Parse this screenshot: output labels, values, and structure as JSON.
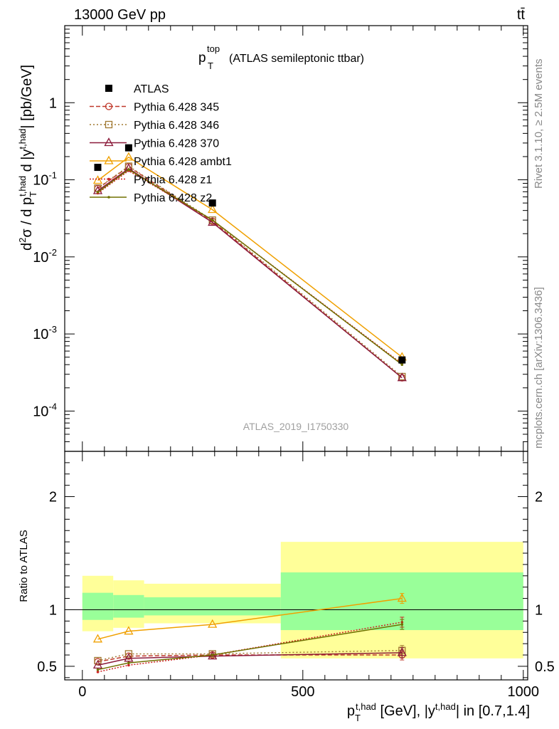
{
  "header": {
    "energy_label": "13000 GeV pp",
    "process_label": "tt̄"
  },
  "side_labels": {
    "rivet": "Rivet 3.1.10, ≥ 2.5M events",
    "mcplots": "mcplots.cern.ch [arXiv:1306.3436]"
  },
  "chart_data": [
    {
      "type": "line",
      "panel": "main",
      "title": "(ATLAS semileptonic ttbar)",
      "title_symbol": "p",
      "title_sup": "top",
      "title_sub": "T",
      "watermark": "ATLAS_2019_I1750330",
      "ylabel": "d²σ / d p_T^{t,had} d |y^{t,had}| [pb/GeV]",
      "yscale": "log",
      "ylim": [
        3e-05,
        10
      ],
      "xlim": [
        -40,
        1010
      ],
      "ytick_labels": [
        {
          "base": "10",
          "exp": "-4",
          "value": 0.0001
        },
        {
          "base": "10",
          "exp": "-3",
          "value": 0.001
        },
        {
          "base": "10",
          "exp": "-2",
          "value": 0.01
        },
        {
          "base": "10",
          "exp": "-1",
          "value": 0.1
        },
        {
          "base": "1",
          "exp": "",
          "value": 1
        }
      ],
      "data": {
        "name": "ATLAS",
        "x": [
          35,
          105,
          295,
          725
        ],
        "y": [
          0.145,
          0.26,
          0.05,
          0.00046
        ]
      },
      "series": [
        {
          "name": "Pythia 6.428 345",
          "color": "#c0392b",
          "dash": "6,3",
          "marker": "circle-open",
          "x": [
            35,
            105,
            295,
            725
          ],
          "y": [
            0.077,
            0.148,
            0.029,
            0.00027
          ]
        },
        {
          "name": "Pythia 6.428 346",
          "color": "#a07830",
          "dash": "2,3",
          "marker": "square-open",
          "x": [
            35,
            105,
            295,
            725
          ],
          "y": [
            0.078,
            0.15,
            0.03,
            0.00028
          ]
        },
        {
          "name": "Pythia 6.428 370",
          "color": "#8b1a3a",
          "dash": "",
          "marker": "triangle-open",
          "x": [
            35,
            105,
            295,
            725
          ],
          "y": [
            0.072,
            0.14,
            0.028,
            0.00027
          ]
        },
        {
          "name": "Pythia 6.428 ambt1",
          "color": "#f0a000",
          "dash": "",
          "marker": "triangle-open",
          "x": [
            35,
            105,
            295,
            725
          ],
          "y": [
            0.098,
            0.196,
            0.041,
            0.0005
          ]
        },
        {
          "name": "Pythia 6.428 z1",
          "color": "#cc2222",
          "dash": "2,2",
          "marker": "dot",
          "x": [
            35,
            105,
            295,
            725
          ],
          "y": [
            0.067,
            0.131,
            0.03,
            0.00041
          ]
        },
        {
          "name": "Pythia 6.428 z2",
          "color": "#707000",
          "dash": "",
          "marker": "dot",
          "x": [
            35,
            105,
            295,
            725
          ],
          "y": [
            0.069,
            0.136,
            0.03,
            0.0004
          ]
        }
      ]
    },
    {
      "type": "line",
      "panel": "ratio",
      "ylabel": "Ratio to ATLAS",
      "xlabel": "p_T^{t,had} [GeV], |y^{t,had}| in [0.7,1.4]",
      "ylim": [
        0.38,
        2.4
      ],
      "xlim": [
        -40,
        1010
      ],
      "xticks": [
        0,
        500,
        1000
      ],
      "yticks": [
        0.5,
        1,
        2
      ],
      "bands": [
        {
          "x0": 0,
          "x1": 70,
          "inner": [
            0.91,
            1.15
          ],
          "outer": [
            0.81,
            1.3
          ]
        },
        {
          "x0": 70,
          "x1": 140,
          "inner": [
            0.93,
            1.13
          ],
          "outer": [
            0.84,
            1.26
          ]
        },
        {
          "x0": 140,
          "x1": 450,
          "inner": [
            0.95,
            1.11
          ],
          "outer": [
            0.88,
            1.23
          ]
        },
        {
          "x0": 450,
          "x1": 1000,
          "inner": [
            0.82,
            1.33
          ],
          "outer": [
            0.57,
            1.6
          ]
        }
      ],
      "series": [
        {
          "name": "Pythia 6.428 345",
          "y": [
            0.54,
            0.59,
            0.6,
            0.6
          ]
        },
        {
          "name": "Pythia 6.428 346",
          "y": [
            0.55,
            0.61,
            0.61,
            0.64
          ]
        },
        {
          "name": "Pythia 6.428 370",
          "y": [
            0.51,
            0.57,
            0.59,
            0.62
          ]
        },
        {
          "name": "Pythia 6.428 ambt1",
          "y": [
            0.74,
            0.81,
            0.87,
            1.1
          ]
        },
        {
          "name": "Pythia 6.428 z1",
          "y": [
            0.45,
            0.51,
            0.6,
            0.89
          ]
        },
        {
          "name": "Pythia 6.428 z2",
          "y": [
            0.47,
            0.53,
            0.6,
            0.87
          ]
        }
      ]
    }
  ]
}
